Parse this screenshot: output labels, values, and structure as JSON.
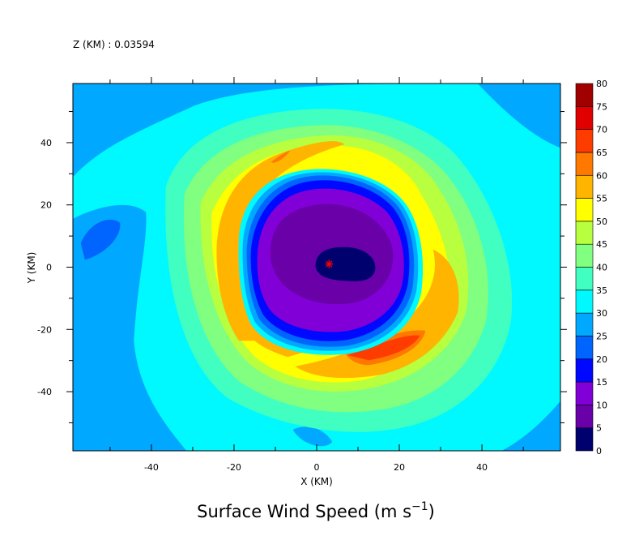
{
  "header": {
    "level_label": "Z (KM) : 0.03594"
  },
  "chart_data": {
    "type": "contour",
    "title": "Surface Wind Speed (m s",
    "title_superscript": "−1",
    "title_suffix": ")",
    "xlabel": "X (KM)",
    "ylabel": "Y (KM)",
    "xlim": [
      -59,
      59
    ],
    "ylim": [
      -59,
      59
    ],
    "x_ticks": [
      -40,
      -20,
      0,
      20,
      40
    ],
    "y_ticks": [
      -40,
      -20,
      0,
      20,
      40
    ],
    "levels": [
      0,
      5,
      10,
      15,
      20,
      25,
      30,
      35,
      40,
      45,
      50,
      55,
      60,
      65,
      70,
      75,
      80
    ],
    "level_colors": [
      "#00006e",
      "#6a00a8",
      "#8200d8",
      "#0008ff",
      "#0064ff",
      "#00a8ff",
      "#00f8ff",
      "#40ffc0",
      "#80ff80",
      "#b8ff40",
      "#ffff00",
      "#ffb400",
      "#ff7800",
      "#ff3c00",
      "#e00000",
      "#a00000"
    ],
    "storm_center": {
      "x": 3,
      "y": 1,
      "marker": "asterisk",
      "color": "#ff0000"
    },
    "background_color": "#00f8ff"
  }
}
